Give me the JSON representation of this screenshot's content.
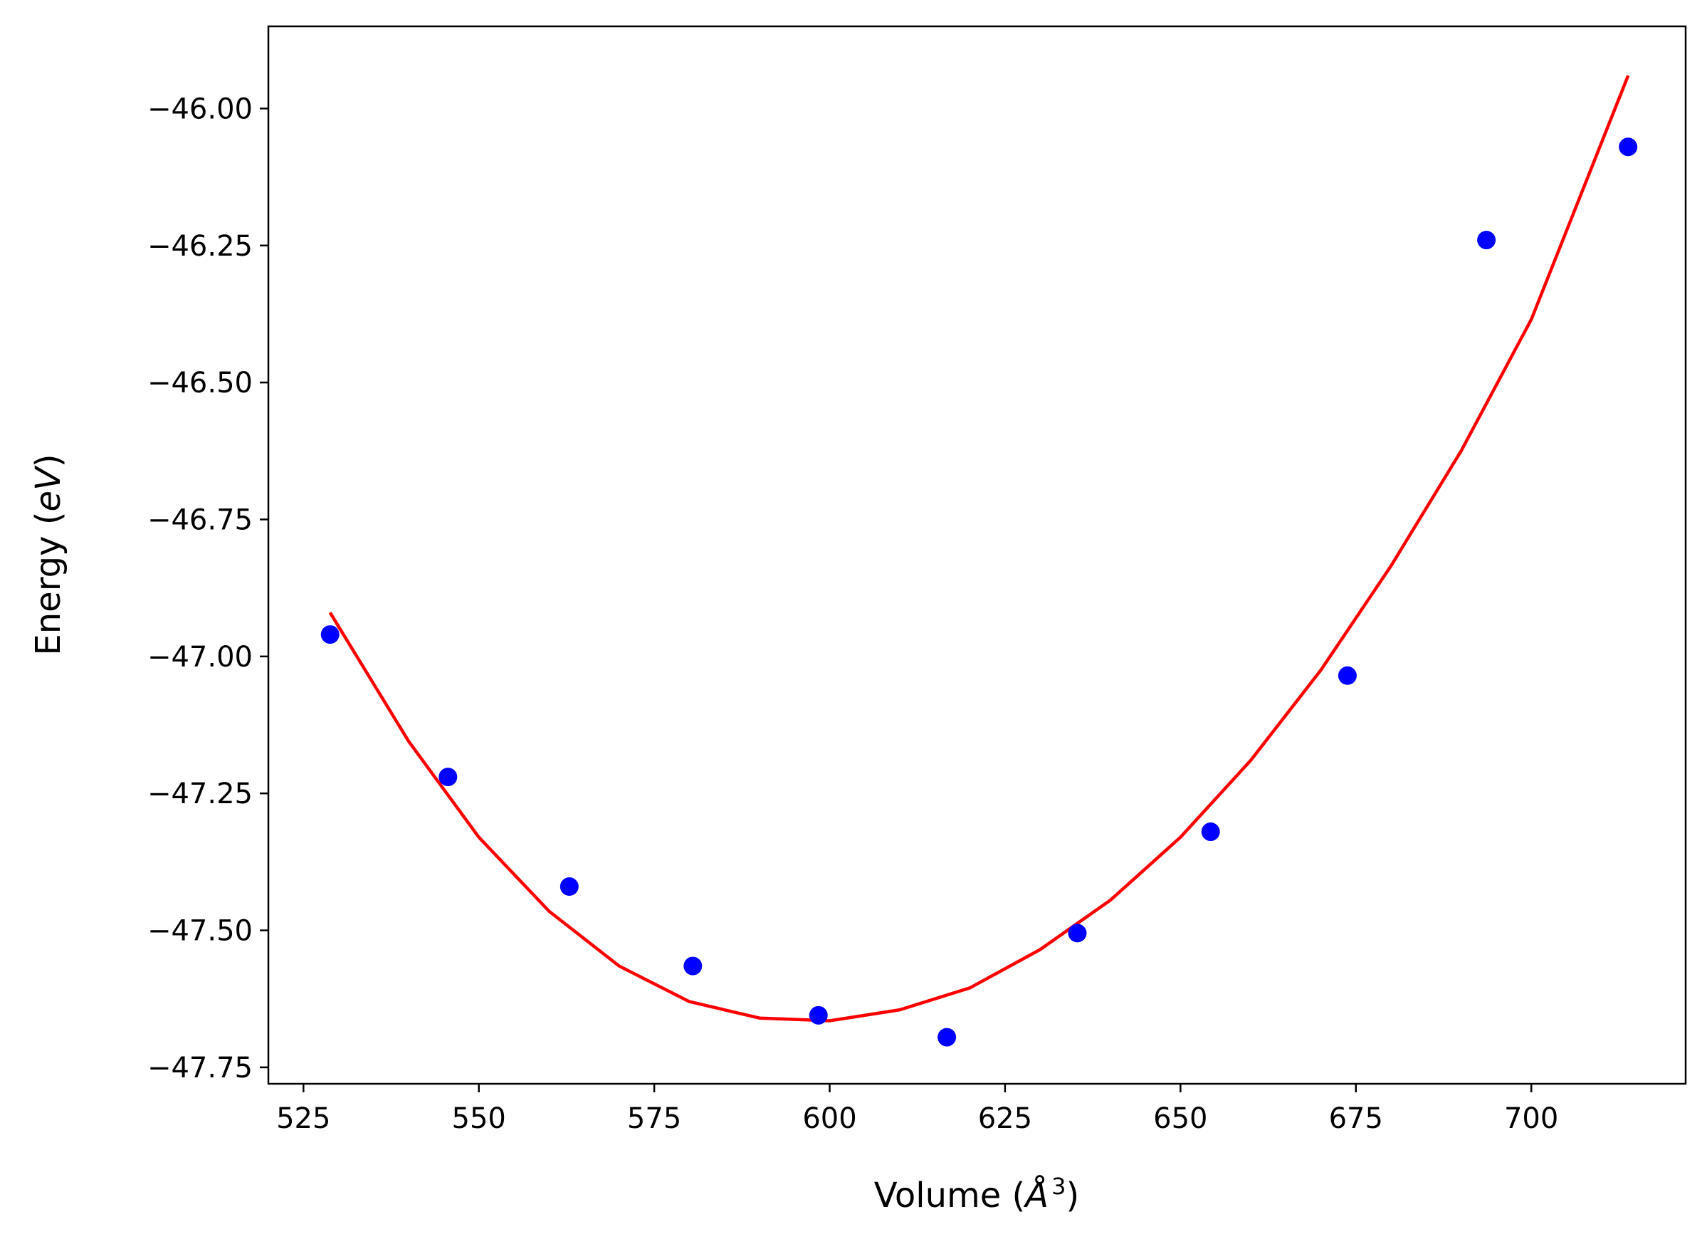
{
  "chart_data": {
    "type": "scatter",
    "title": "",
    "xlabel": "Volume (",
    "xlabel_unit": "Å",
    "xlabel_exp": "3",
    "xlabel_close": ")",
    "ylabel": "Energy (",
    "ylabel_unit": "eV",
    "ylabel_close": ")",
    "xlim": [
      520,
      722
    ],
    "ylim": [
      -47.78,
      -45.85
    ],
    "x_ticks": [
      525,
      550,
      575,
      600,
      625,
      650,
      675,
      700
    ],
    "x_tick_labels": [
      "525",
      "550",
      "575",
      "600",
      "625",
      "650",
      "675",
      "700"
    ],
    "y_ticks": [
      -46.0,
      -46.25,
      -46.5,
      -46.75,
      -47.0,
      -47.25,
      -47.5,
      -47.75
    ],
    "y_tick_labels": [
      "−46.00",
      "−46.25",
      "−46.50",
      "−46.75",
      "−47.00",
      "−47.25",
      "−47.50",
      "−47.75"
    ],
    "grid": false,
    "legend": "none",
    "series": [
      {
        "kind": "points",
        "color": "#0000ff",
        "x": [
          528.8,
          545.6,
          562.9,
          580.5,
          598.4,
          616.7,
          635.3,
          654.3,
          673.8,
          693.6,
          713.8
        ],
        "y": [
          -46.96,
          -47.22,
          -47.42,
          -47.565,
          -47.655,
          -47.695,
          -47.505,
          -47.32,
          -47.035,
          -46.24,
          -46.07
        ]
      },
      {
        "kind": "fit-line",
        "color": "#ff0000",
        "x": [
          528.8,
          540,
          550,
          560,
          570,
          580,
          590,
          600,
          610,
          620,
          630,
          640,
          650,
          660,
          670,
          680,
          690,
          700,
          713.8
        ],
        "y": [
          -46.92,
          -47.155,
          -47.33,
          -47.465,
          -47.565,
          -47.63,
          -47.66,
          -47.665,
          -47.645,
          -47.605,
          -47.535,
          -47.445,
          -47.33,
          -47.19,
          -47.025,
          -46.835,
          -46.625,
          -46.385,
          -45.94
        ]
      }
    ]
  }
}
